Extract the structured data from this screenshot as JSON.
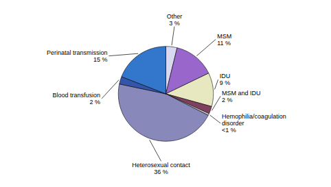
{
  "chart_data": {
    "type": "pie",
    "categories": [
      "Other",
      "MSM",
      "IDU",
      "MSM and IDU",
      "Hemophilia/coagulation\ndisorder",
      "Heterosexual contact",
      "Blood transfusion",
      "Perinatal transmission"
    ],
    "values": [
      3,
      11,
      9,
      2,
      0.5,
      36,
      2,
      15
    ],
    "value_labels": [
      "3 %",
      "11 %",
      "9 %",
      "2 %",
      "<1 %",
      "36 %",
      "2 %",
      "15 %"
    ],
    "colors": [
      "#d8d8f0",
      "#9966cc",
      "#e8e8c0",
      "#804060",
      "#c8c8c8",
      "#8888bb",
      "#3355aa",
      "#3377cc"
    ],
    "data_labels": true
  }
}
